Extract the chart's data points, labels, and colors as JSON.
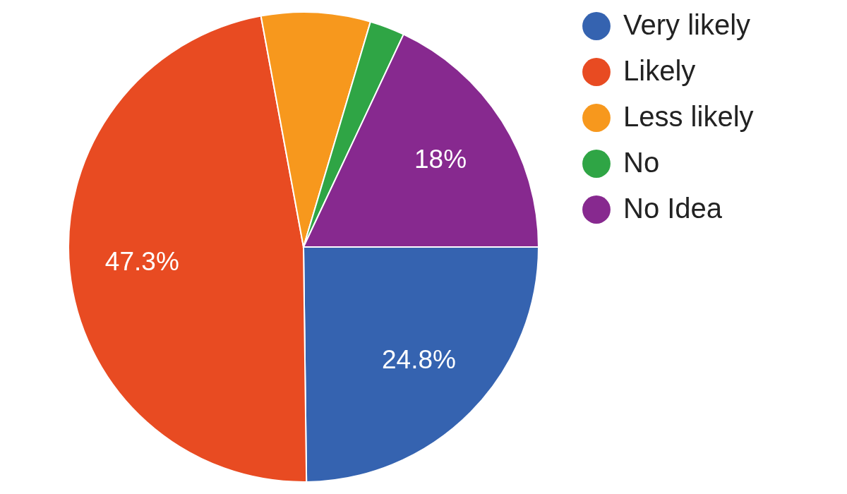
{
  "chart_data": {
    "type": "pie",
    "categories": [
      "Very likely",
      "Likely",
      "Less likely",
      "No",
      "No Idea"
    ],
    "values": [
      24.8,
      47.3,
      7.5,
      2.4,
      18
    ],
    "colors": [
      "#3563b0",
      "#e84b22",
      "#f7981d",
      "#2fa545",
      "#87298f"
    ],
    "value_labels": [
      "24.8%",
      "47.3%",
      null,
      null,
      "18%"
    ],
    "legend": "top right"
  }
}
